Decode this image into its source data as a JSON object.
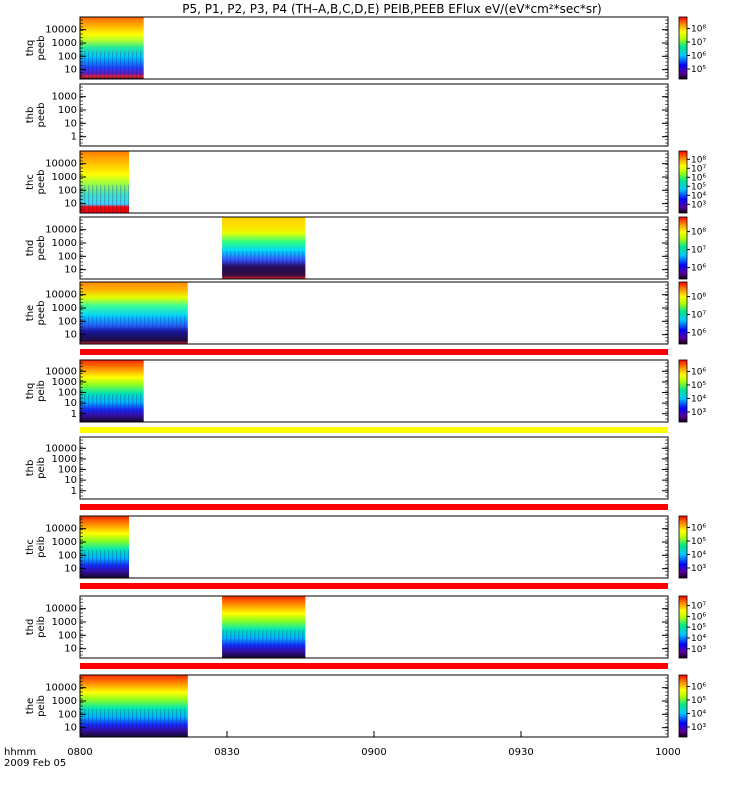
{
  "title": "P5, P1, P2, P3, P4 (TH–A,B,C,D,E) PEIB,PEEB EFlux eV/(eV*cm²*sec*sr)",
  "time_axis": {
    "label": "hhmm",
    "date": "2009 Feb 05",
    "ticks": [
      "0800",
      "0830",
      "0900",
      "0930",
      "1000"
    ]
  },
  "chart_data": [
    {
      "type": "heatmap",
      "panel": "thq peeb",
      "ylabel": [
        "thq",
        "peeb"
      ],
      "yticks": [
        "10",
        "100",
        "1000",
        "10000"
      ],
      "data_start": "0800",
      "data_end": "0813",
      "colorbar_ticks": [
        "10⁵",
        "10⁶",
        "10⁷",
        "10⁸"
      ],
      "band_profile": "peeb",
      "stripe": null
    },
    {
      "type": "heatmap",
      "panel": "thb peeb",
      "ylabel": [
        "thb",
        "peeb"
      ],
      "yticks": [
        "1",
        "10",
        "100",
        "1000"
      ],
      "data_start": null,
      "data_end": null,
      "colorbar_ticks": [],
      "band_profile": null,
      "stripe": null
    },
    {
      "type": "heatmap",
      "panel": "thc peeb",
      "ylabel": [
        "thc",
        "peeb"
      ],
      "yticks": [
        "10",
        "100",
        "1000",
        "10000"
      ],
      "data_start": "0800",
      "data_end": "0810",
      "colorbar_ticks": [
        "10³",
        "10⁴",
        "10⁵",
        "10⁶",
        "10⁷",
        "10⁸"
      ],
      "band_profile": "peeb_c",
      "stripe": null
    },
    {
      "type": "heatmap",
      "panel": "thd peeb",
      "ylabel": [
        "thd",
        "peeb"
      ],
      "yticks": [
        "10",
        "100",
        "1000",
        "10000"
      ],
      "data_start": "0829",
      "data_end": "0846",
      "colorbar_ticks": [
        "10⁶",
        "10⁷",
        "10⁸"
      ],
      "band_profile": "peeb_d",
      "stripe": null
    },
    {
      "type": "heatmap",
      "panel": "the peeb",
      "ylabel": [
        "the",
        "peeb"
      ],
      "yticks": [
        "10",
        "100",
        "1000",
        "10000"
      ],
      "data_start": "0800",
      "data_end": "0822",
      "colorbar_ticks": [
        "10⁶",
        "10⁷",
        "10⁸"
      ],
      "band_profile": "peeb_e",
      "stripe": "red"
    },
    {
      "type": "heatmap",
      "panel": "thq peib",
      "ylabel": [
        "thq",
        "peib"
      ],
      "yticks": [
        "1",
        "10",
        "100",
        "1000",
        "10000"
      ],
      "data_start": "0800",
      "data_end": "0813",
      "colorbar_ticks": [
        "10³",
        "10⁴",
        "10⁵",
        "10⁶"
      ],
      "band_profile": "peib",
      "stripe": "yellow"
    },
    {
      "type": "heatmap",
      "panel": "thb peib",
      "ylabel": [
        "thb",
        "peib"
      ],
      "yticks": [
        "1",
        "10",
        "100",
        "1000",
        "10000"
      ],
      "data_start": null,
      "data_end": null,
      "colorbar_ticks": [],
      "band_profile": null,
      "stripe": "red"
    },
    {
      "type": "heatmap",
      "panel": "thc peib",
      "ylabel": [
        "thc",
        "peib"
      ],
      "yticks": [
        "10",
        "100",
        "1000",
        "10000"
      ],
      "data_start": "0800",
      "data_end": "0810",
      "colorbar_ticks": [
        "10³",
        "10⁴",
        "10⁵",
        "10⁶"
      ],
      "band_profile": "peib",
      "stripe": "red"
    },
    {
      "type": "heatmap",
      "panel": "thd peib",
      "ylabel": [
        "thd",
        "peib"
      ],
      "yticks": [
        "10",
        "100",
        "1000",
        "10000"
      ],
      "data_start": "0829",
      "data_end": "0846",
      "colorbar_ticks": [
        "10³",
        "10⁴",
        "10⁵",
        "10⁶",
        "10⁷"
      ],
      "band_profile": "peib",
      "stripe": "red"
    },
    {
      "type": "heatmap",
      "panel": "the peib",
      "ylabel": [
        "the",
        "peib"
      ],
      "yticks": [
        "10",
        "100",
        "1000",
        "10000"
      ],
      "data_start": "0800",
      "data_end": "0822",
      "colorbar_ticks": [
        "10³",
        "10⁴",
        "10⁵",
        "10⁶"
      ],
      "band_profile": "peib",
      "stripe": null
    }
  ]
}
